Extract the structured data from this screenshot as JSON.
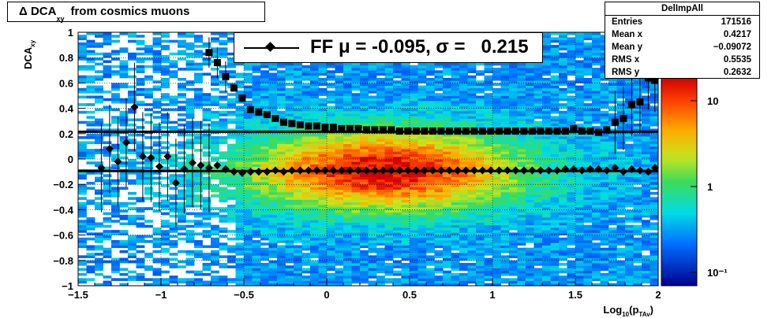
{
  "title": {
    "main": "Δ DCA",
    "sub": "xy",
    "rest": "from cosmics muons"
  },
  "legend": {
    "label": "FF μ = -0.095, σ =   0.215"
  },
  "stats": {
    "name": "DelImpAll",
    "rows": [
      {
        "label": "Entries",
        "value": "171516"
      },
      {
        "label": "Mean x",
        "value": "0.4217"
      },
      {
        "label": "Mean y",
        "value": "−0.09072"
      },
      {
        "label": "RMS x",
        "value": "0.5535"
      },
      {
        "label": "RMS y",
        "value": "0.2632"
      }
    ]
  },
  "chart_data": {
    "type": "heatmap",
    "title": "Δ DCA_xy  from cosmics muons",
    "xlabel": "Log_10(p_TAv)",
    "ylabel": "DCA_xy",
    "xlim": [
      -1.5,
      2
    ],
    "ylim": [
      -1,
      1
    ],
    "x_ticks": [
      "−1.5",
      "−1",
      "−0.5",
      "0",
      "0.5",
      "1",
      "1.5",
      "2"
    ],
    "y_ticks": [
      "−1",
      "−0.8",
      "−0.6",
      "−0.4",
      "−0.2",
      "0",
      "0.2",
      "0.4",
      "0.6",
      "0.8",
      "1"
    ],
    "grid": true,
    "colorbar": {
      "scale": "log",
      "ticks": [
        "10",
        "1",
        "10⁻¹"
      ]
    },
    "hlines": [
      0.215,
      -0.095
    ],
    "profile_mean": {
      "x": [
        -1.36,
        -1.31,
        -1.26,
        -1.21,
        -1.16,
        -1.11,
        -1.06,
        -1.01,
        -0.96,
        -0.91,
        -0.86,
        -0.81,
        -0.76,
        -0.71,
        -0.66,
        -0.61,
        -0.56,
        -0.51,
        -0.46,
        -0.41,
        -0.36,
        -0.31,
        -0.26,
        -0.21,
        -0.16,
        -0.11,
        -0.06,
        -0.01,
        0.04,
        0.09,
        0.14,
        0.19,
        0.24,
        0.29,
        0.34,
        0.39,
        0.44,
        0.49,
        0.54,
        0.59,
        0.64,
        0.69,
        0.74,
        0.79,
        0.84,
        0.89,
        0.94,
        0.99,
        1.04,
        1.09,
        1.14,
        1.19,
        1.24,
        1.29,
        1.34,
        1.39,
        1.44,
        1.49,
        1.54,
        1.59,
        1.64,
        1.69,
        1.74,
        1.79,
        1.84,
        1.89,
        1.94,
        1.98
      ],
      "y": [
        -0.07,
        0.08,
        -0.02,
        0.13,
        0.41,
        0.02,
        0.01,
        -0.06,
        0.02,
        -0.19,
        -0.08,
        -0.03,
        -0.05,
        -0.07,
        -0.05,
        -0.08,
        -0.1,
        -0.11,
        -0.1,
        -0.1,
        -0.1,
        -0.09,
        -0.1,
        -0.09,
        -0.09,
        -0.09,
        -0.09,
        -0.09,
        -0.09,
        -0.09,
        -0.09,
        -0.09,
        -0.09,
        -0.09,
        -0.09,
        -0.09,
        -0.09,
        -0.09,
        -0.09,
        -0.09,
        -0.09,
        -0.09,
        -0.09,
        -0.09,
        -0.09,
        -0.09,
        -0.09,
        -0.09,
        -0.09,
        -0.09,
        -0.09,
        -0.09,
        -0.09,
        -0.09,
        -0.09,
        -0.09,
        -0.08,
        -0.08,
        -0.09,
        -0.08,
        -0.08,
        -0.09,
        -0.07,
        -0.1,
        -0.08,
        -0.09,
        -0.1,
        -0.07
      ]
    },
    "profile_rms": {
      "x": [
        -0.71,
        -0.66,
        -0.61,
        -0.56,
        -0.51,
        -0.46,
        -0.41,
        -0.36,
        -0.31,
        -0.26,
        -0.21,
        -0.16,
        -0.11,
        -0.06,
        -0.01,
        0.04,
        0.09,
        0.14,
        0.19,
        0.24,
        0.29,
        0.34,
        0.39,
        0.44,
        0.49,
        0.54,
        0.59,
        0.64,
        0.69,
        0.74,
        0.79,
        0.84,
        0.89,
        0.94,
        0.99,
        1.04,
        1.09,
        1.14,
        1.19,
        1.24,
        1.29,
        1.34,
        1.39,
        1.44,
        1.49,
        1.54,
        1.59,
        1.64,
        1.69,
        1.74,
        1.79,
        1.84,
        1.89,
        1.94,
        1.98
      ],
      "y": [
        0.84,
        0.76,
        0.65,
        0.56,
        0.48,
        0.39,
        0.37,
        0.35,
        0.32,
        0.29,
        0.28,
        0.27,
        0.26,
        0.26,
        0.25,
        0.25,
        0.24,
        0.24,
        0.24,
        0.23,
        0.23,
        0.23,
        0.23,
        0.22,
        0.22,
        0.22,
        0.22,
        0.22,
        0.22,
        0.22,
        0.22,
        0.22,
        0.22,
        0.22,
        0.22,
        0.22,
        0.22,
        0.22,
        0.22,
        0.22,
        0.22,
        0.22,
        0.22,
        0.22,
        0.24,
        0.22,
        0.22,
        0.21,
        0.23,
        0.29,
        0.32,
        0.43,
        0.45,
        0.64,
        0.62
      ]
    }
  }
}
